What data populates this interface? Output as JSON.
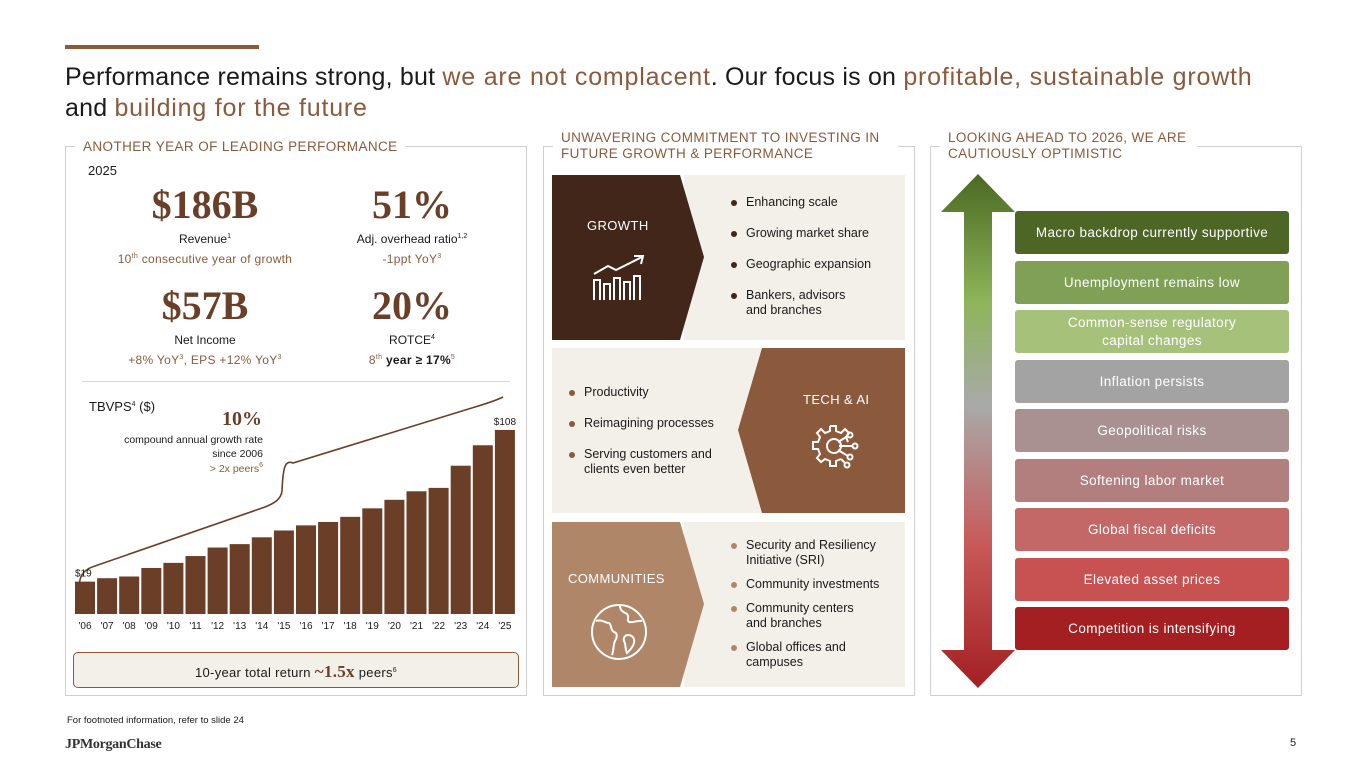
{
  "headline": {
    "p1": "Performance remains strong, but ",
    "h1": "we are not complacent",
    "p2": ". Our focus is on ",
    "h2": "profitable, sustainable growth",
    "p3": " and ",
    "h3": "building for the future"
  },
  "performance": {
    "title": "ANOTHER YEAR OF LEADING PERFORMANCE",
    "year": "2025",
    "revenue": {
      "value": "$186B",
      "label": "Revenue",
      "sup": "1",
      "sub_sup": "th",
      "sub_a": "10",
      "sub_b": " consecutive year of growth"
    },
    "overhead": {
      "value": "51%",
      "label": "Adj. overhead ratio",
      "sup": "1,2",
      "sub": "-1ppt YoY",
      "sub_sup": "3"
    },
    "net_income": {
      "value": "$57B",
      "label": "Net Income",
      "sub_a": "+8% YoY",
      "sup_a": "3",
      "sub_b": ", EPS +12% YoY",
      "sup_b": "3"
    },
    "rotce": {
      "value": "20%",
      "label": "ROTCE",
      "sup": "4",
      "sub_a": "8",
      "sub_sup": "th",
      "sub_b": " year ≥ 17%",
      "sup_b": "5"
    },
    "tbvps_label": "TBVPS",
    "tbvps_sup": "4",
    "tbvps_unit": " ($)",
    "cagr_value": "10%",
    "cagr_text": "compound annual growth rate since 2006",
    "cagr_peers": "> 2x peers",
    "cagr_peers_sup": "6",
    "return_a": "10-year total return ",
    "return_mult": "~1.5x",
    "return_b": " peers",
    "return_sup": "6"
  },
  "chart_data": {
    "type": "bar",
    "categories": [
      "'06",
      "'07",
      "'08",
      "'09",
      "'10",
      "'11",
      "'12",
      "'13",
      "'14",
      "'15",
      "'16",
      "'17",
      "'18",
      "'19",
      "'20",
      "'21",
      "'22",
      "'23",
      "'24",
      "'25"
    ],
    "values": [
      19,
      21,
      22,
      27,
      30,
      34,
      39,
      41,
      45,
      49,
      52,
      54,
      57,
      62,
      67,
      72,
      74,
      87,
      99,
      108
    ],
    "data_labels": {
      "first": "$19",
      "last": "$108"
    },
    "title": "",
    "ylim": [
      0,
      115
    ],
    "color": "#6b3f27"
  },
  "investing": {
    "title": "UNWAVERING COMMITMENT TO INVESTING IN FUTURE GROWTH & PERFORMANCE",
    "growth": {
      "label": "GROWTH",
      "icon": "growth-chart-icon",
      "color": "#42261a",
      "items": [
        "Enhancing scale",
        "Growing market share",
        "Geographic expansion",
        "Bankers, advisors and branches"
      ]
    },
    "tech": {
      "label": "TECH & AI",
      "icon": "ai-gear-icon",
      "color": "#8b5a3c",
      "items": [
        "Productivity",
        "Reimagining processes",
        "Serving customers and clients even better"
      ]
    },
    "communities": {
      "label": "COMMUNITIES",
      "icon": "globe-icon",
      "color": "#b08668",
      "items": [
        "Security and Resiliency Initiative (SRI)",
        "Community investments",
        "Community centers and branches",
        "Global offices and campuses"
      ]
    }
  },
  "outlook": {
    "title": "LOOKING AHEAD TO 2026, WE ARE CAUTIOUSLY OPTIMISTIC",
    "items": [
      {
        "label": "Macro backdrop currently supportive",
        "color": "#4d6625"
      },
      {
        "label": "Unemployment remains low",
        "color": "#7fa055"
      },
      {
        "label": "Common-sense regulatory capital changes",
        "color": "#a6c27a"
      },
      {
        "label": "Inflation persists",
        "color": "#a3a3a3"
      },
      {
        "label": "Geopolitical risks",
        "color": "#a99191"
      },
      {
        "label": "Softening labor market",
        "color": "#b37e7e"
      },
      {
        "label": "Global fiscal deficits",
        "color": "#c36767"
      },
      {
        "label": "Elevated asset prices",
        "color": "#c85152"
      },
      {
        "label": "Competition is intensifying",
        "color": "#a31f22"
      }
    ]
  },
  "footer": {
    "note": "For footnoted information, refer to slide 24",
    "logo": "JPMorganChase",
    "page": "5"
  }
}
